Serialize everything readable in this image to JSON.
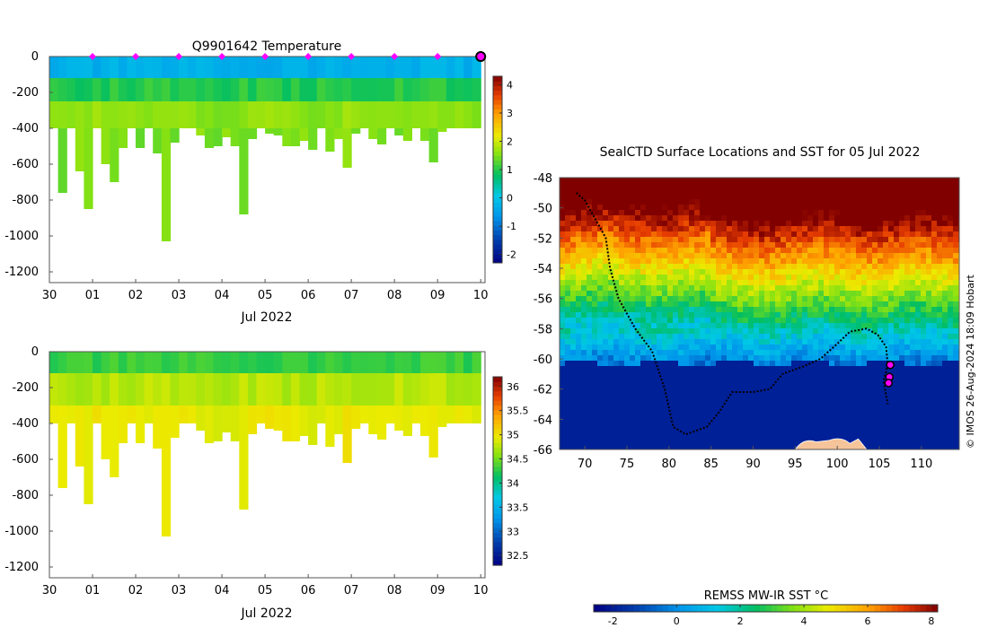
{
  "chart_data": [
    {
      "type": "heatmap",
      "id": "temperature-section",
      "title": "Q9901642  Temperature",
      "xlabel": "Jul 2022",
      "x_tick_labels": [
        "30",
        "01",
        "02",
        "03",
        "04",
        "05",
        "06",
        "07",
        "08",
        "09",
        "10"
      ],
      "x_tick_days": [
        0,
        1,
        2,
        3,
        4,
        5,
        6,
        7,
        8,
        9,
        10
      ],
      "xlim_days": [
        0,
        10.1
      ],
      "ylabel": "",
      "y_tick_labels": [
        "0",
        "-200",
        "-400",
        "-600",
        "-800",
        "-1000",
        "-1200"
      ],
      "y_tick_values": [
        0,
        -200,
        -400,
        -600,
        -800,
        -1000,
        -1200
      ],
      "ylim": [
        -1260,
        0
      ],
      "colorbar": {
        "ticks": [
          "-2",
          "-1",
          "0",
          "1",
          "2",
          "3",
          "4"
        ],
        "tick_values": [
          -2,
          -1,
          0,
          1,
          2,
          3,
          4
        ],
        "range": [
          -2.3,
          4.3
        ]
      },
      "profile_markers_days": [
        1,
        2,
        3,
        4,
        5,
        6,
        7,
        8,
        9
      ],
      "last_position_marker_day": 10,
      "profile_max_depths": [
        400,
        760,
        400,
        640,
        850,
        400,
        600,
        700,
        510,
        400,
        510,
        400,
        540,
        1030,
        480,
        400,
        400,
        440,
        510,
        500,
        450,
        500,
        880,
        460,
        400,
        430,
        440,
        500,
        500,
        470,
        520,
        400,
        530,
        460,
        620,
        430,
        400,
        460,
        490,
        400,
        440,
        470,
        400,
        470,
        590,
        420,
        400,
        400,
        400,
        400
      ],
      "layers_deg_c": [
        {
          "top": 0,
          "bottom": 120,
          "value": -0.3
        },
        {
          "top": 120,
          "bottom": 250,
          "value": 1.0
        },
        {
          "top": 250,
          "bottom": 400,
          "value": 1.6
        },
        {
          "top": 400,
          "bottom": 1030,
          "value": 1.5
        }
      ]
    },
    {
      "type": "heatmap",
      "id": "salinity-section",
      "title": "",
      "xlabel": "Jul 2022",
      "x_tick_labels": [
        "30",
        "01",
        "02",
        "03",
        "04",
        "05",
        "06",
        "07",
        "08",
        "09",
        "10"
      ],
      "x_tick_days": [
        0,
        1,
        2,
        3,
        4,
        5,
        6,
        7,
        8,
        9,
        10
      ],
      "xlim_days": [
        0,
        10.1
      ],
      "y_tick_labels": [
        "0",
        "-200",
        "-400",
        "-600",
        "-800",
        "-1000",
        "-1200"
      ],
      "y_tick_values": [
        0,
        -200,
        -400,
        -600,
        -800,
        -1000,
        -1200
      ],
      "ylim": [
        -1260,
        0
      ],
      "colorbar": {
        "ticks": [
          "32.5",
          "33",
          "33.5",
          "34",
          "34.5",
          "35",
          "35.5",
          "36"
        ],
        "tick_values": [
          32.5,
          33,
          33.5,
          34,
          34.5,
          35,
          35.5,
          36
        ],
        "range": [
          32.3,
          36.2
        ]
      },
      "layers_psu": [
        {
          "top": 0,
          "bottom": 120,
          "value": 34.3
        },
        {
          "top": 120,
          "bottom": 300,
          "value": 34.75
        },
        {
          "top": 300,
          "bottom": 1030,
          "value": 34.95
        }
      ]
    },
    {
      "type": "map",
      "id": "sst-map",
      "title": "SealCTD Surface Locations and SST for 05 Jul 2022",
      "x_tick_labels": [
        "70",
        "75",
        "80",
        "85",
        "90",
        "95",
        "100",
        "105",
        "110"
      ],
      "x_tick_values": [
        70,
        75,
        80,
        85,
        90,
        95,
        100,
        105,
        110
      ],
      "xlim": [
        67,
        114.5
      ],
      "y_tick_labels": [
        "-48",
        "-50",
        "-52",
        "-54",
        "-56",
        "-58",
        "-60",
        "-62",
        "-64",
        "-66"
      ],
      "y_tick_values": [
        -48,
        -50,
        -52,
        -54,
        -56,
        -58,
        -60,
        -62,
        -64,
        -66
      ],
      "ylim": [
        -66,
        -48
      ],
      "track": [
        [
          69,
          -49
        ],
        [
          70,
          -49.5
        ],
        [
          71,
          -50.5
        ],
        [
          72.5,
          -52
        ],
        [
          73,
          -54
        ],
        [
          74,
          -56
        ],
        [
          76,
          -58
        ],
        [
          78,
          -59.5
        ],
        [
          79.5,
          -62
        ],
        [
          80.5,
          -64.5
        ],
        [
          82,
          -65
        ],
        [
          84.5,
          -64.5
        ],
        [
          86,
          -63.5
        ],
        [
          87.5,
          -62.2
        ],
        [
          90,
          -62.2
        ],
        [
          92,
          -62
        ],
        [
          93.5,
          -61
        ],
        [
          96,
          -60.5
        ],
        [
          98,
          -60
        ],
        [
          100,
          -59
        ],
        [
          101.5,
          -58.2
        ],
        [
          103.5,
          -58
        ],
        [
          104.8,
          -58.4
        ],
        [
          105.8,
          -59.2
        ],
        [
          106,
          -60.4
        ],
        [
          105.5,
          -61.5
        ],
        [
          106,
          -63
        ]
      ],
      "recent_positions": [
        [
          106.3,
          -60.4
        ],
        [
          106.2,
          -61.2
        ],
        [
          106.1,
          -61.6
        ]
      ],
      "colorbar": {
        "label": "REMSS MW-IR SST °C",
        "ticks": [
          "-2",
          "0",
          "2",
          "4",
          "6",
          "8"
        ],
        "tick_values": [
          -2,
          0,
          2,
          4,
          6,
          8
        ],
        "range": [
          -2.6,
          8.2
        ]
      },
      "credit": "© IMOS 26-Aug-2024 18:09 Hobart"
    }
  ]
}
